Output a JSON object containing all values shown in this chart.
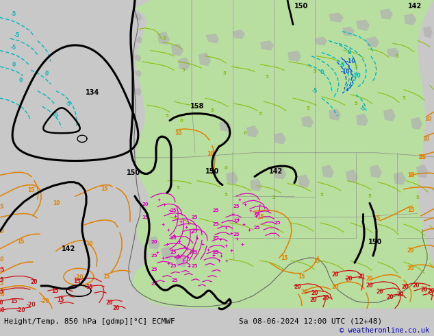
{
  "title_left": "Height/Temp. 850 hPa [gdmp][°C] ECMWF",
  "title_right": "Sa 08-06-2024 12:00 UTC (12+48)",
  "copyright": "© weatheronline.co.uk",
  "bg_outer": "#c8c8c8",
  "map_bg": "#d8d8d8",
  "green_fill": "#b8dea0",
  "bottom_bar": "#e8e8e8",
  "copyright_color": "#0000bb",
  "black_lw": 2.0,
  "orange_color": "#e08000",
  "cyan_color": "#00b8b8",
  "blue_color": "#0055dd",
  "lgreen_color": "#88bb00",
  "pink_color": "#dd00bb",
  "red_color": "#cc1111",
  "gray_coast": "#999999",
  "gray_land": "#b0b0b0"
}
